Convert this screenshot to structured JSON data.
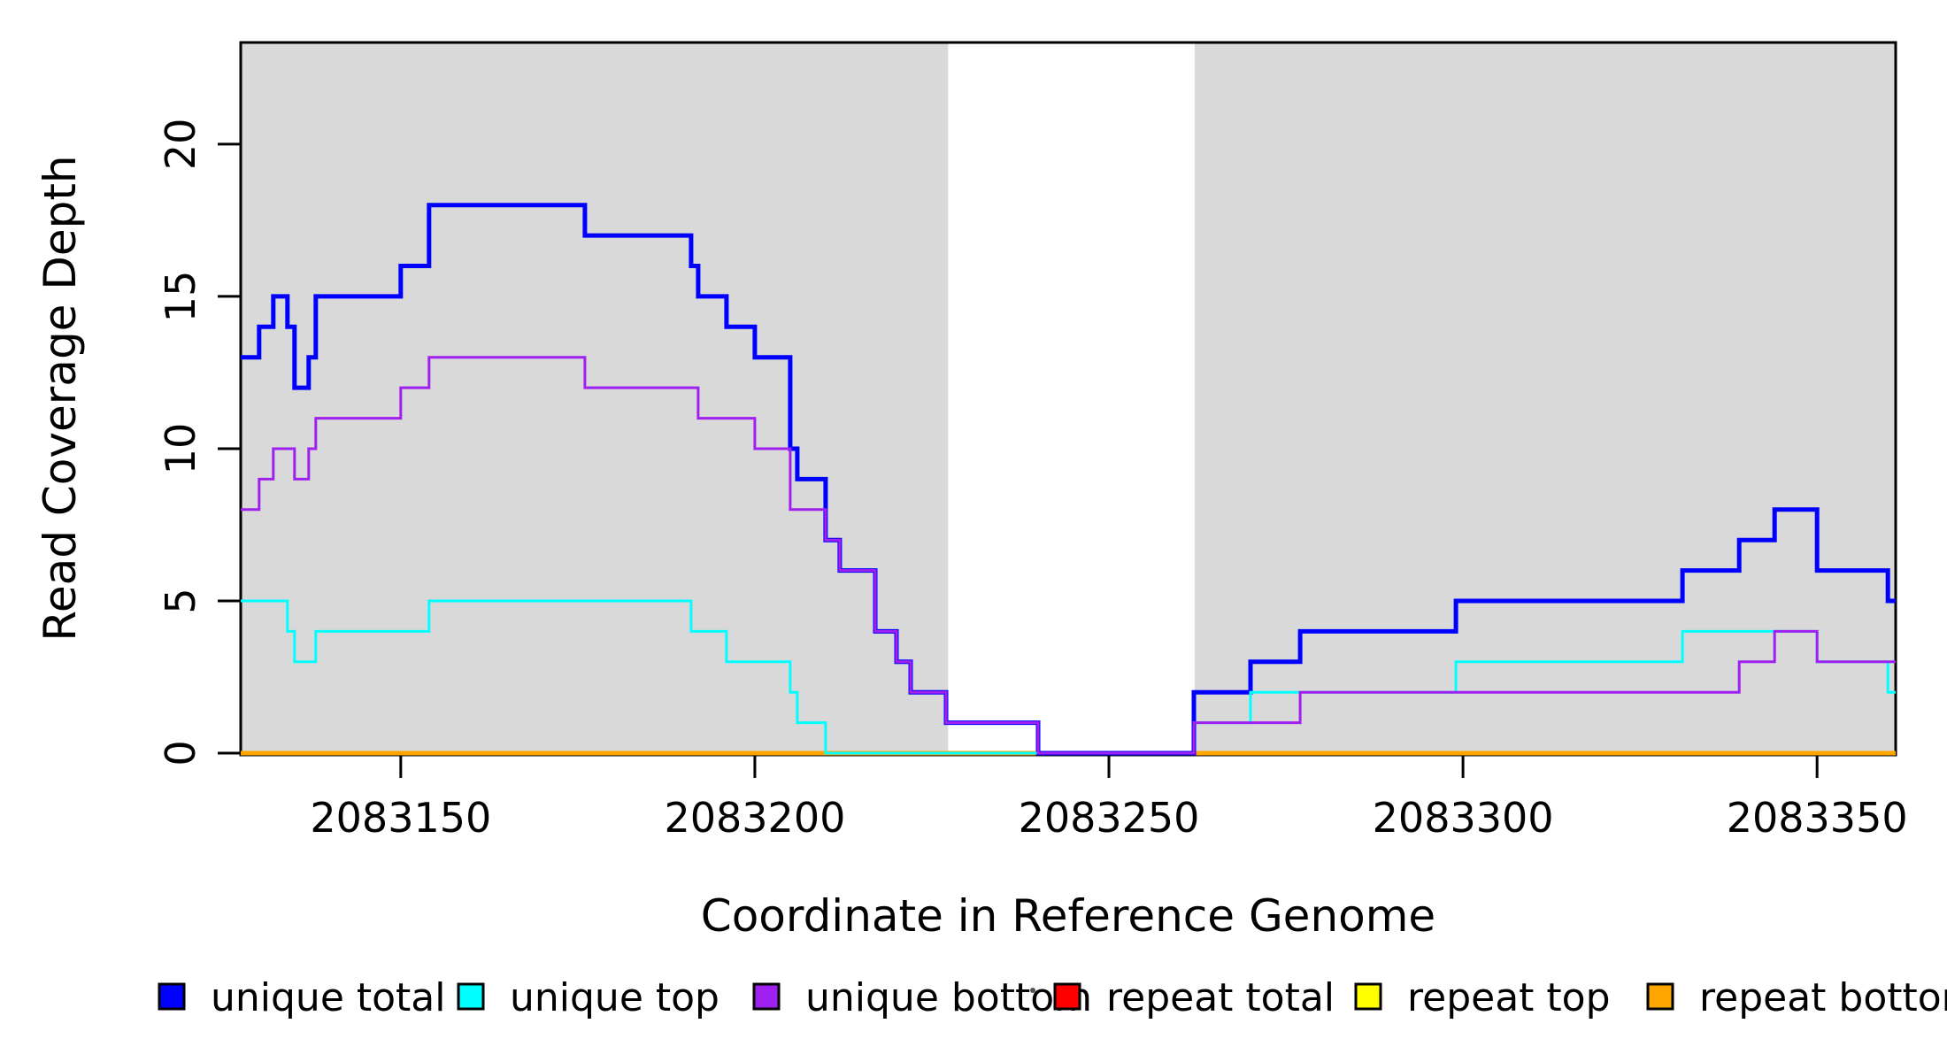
{
  "chart_data": {
    "type": "line",
    "subtype": "step-after-coverage",
    "title": "",
    "xlabel": "Coordinate in Reference Genome",
    "ylabel": "Read Coverage Depth",
    "xlim": [
      2083127.4,
      2083361.1
    ],
    "ylim": [
      0,
      23.34
    ],
    "xticks": [
      2083150,
      2083200,
      2083250,
      2083300,
      2083350
    ],
    "yticks": [
      0,
      5,
      10,
      15,
      20
    ],
    "grid": false,
    "plot_background": "#ffffff",
    "shaded_region_color": "#d9d9d9",
    "shaded_regions": [
      {
        "x0": 2083127.4,
        "x1": 2083227.3
      },
      {
        "x0": 2083262.1,
        "x1": 2083361.1
      }
    ],
    "series": [
      {
        "name": "repeat total",
        "color": "#ff0000",
        "width": 3,
        "points": [
          [
            2083127.4,
            0
          ],
          [
            2083361.1,
            0
          ]
        ]
      },
      {
        "name": "repeat top",
        "color": "#ffff00",
        "width": 3,
        "points": [
          [
            2083127.4,
            0
          ],
          [
            2083361.1,
            0
          ]
        ]
      },
      {
        "name": "repeat bottom",
        "color": "#ffa500",
        "width": 5,
        "points": [
          [
            2083127.4,
            0
          ],
          [
            2083361.1,
            0
          ]
        ]
      },
      {
        "name": "unique total",
        "color": "#0000ff",
        "width": 5,
        "points": [
          [
            2083127.4,
            13
          ],
          [
            2083130,
            14
          ],
          [
            2083132,
            15
          ],
          [
            2083134,
            14
          ],
          [
            2083135,
            12
          ],
          [
            2083137,
            13
          ],
          [
            2083138,
            15
          ],
          [
            2083150,
            16
          ],
          [
            2083154,
            18
          ],
          [
            2083176,
            17
          ],
          [
            2083191,
            16
          ],
          [
            2083192,
            15
          ],
          [
            2083196,
            14
          ],
          [
            2083200,
            13
          ],
          [
            2083205,
            10
          ],
          [
            2083206,
            9
          ],
          [
            2083210,
            7
          ],
          [
            2083212,
            6
          ],
          [
            2083217,
            4
          ],
          [
            2083220,
            3
          ],
          [
            2083222,
            2
          ],
          [
            2083227,
            1
          ],
          [
            2083240,
            0
          ],
          [
            2083262,
            2
          ],
          [
            2083270,
            3
          ],
          [
            2083277,
            4
          ],
          [
            2083299,
            5
          ],
          [
            2083331,
            6
          ],
          [
            2083339,
            7
          ],
          [
            2083344,
            8
          ],
          [
            2083350,
            6
          ],
          [
            2083360,
            5
          ],
          [
            2083361.1,
            5
          ]
        ]
      },
      {
        "name": "unique top",
        "color": "#00ffff",
        "width": 3,
        "points": [
          [
            2083127.4,
            5
          ],
          [
            2083134,
            4
          ],
          [
            2083135,
            3
          ],
          [
            2083138,
            4
          ],
          [
            2083154,
            5
          ],
          [
            2083191,
            4
          ],
          [
            2083196,
            3
          ],
          [
            2083205,
            2
          ],
          [
            2083206,
            1
          ],
          [
            2083210,
            0
          ],
          [
            2083262,
            1
          ],
          [
            2083270,
            2
          ],
          [
            2083299,
            3
          ],
          [
            2083331,
            4
          ],
          [
            2083350,
            3
          ],
          [
            2083360,
            2
          ],
          [
            2083361.1,
            2
          ]
        ]
      },
      {
        "name": "unique bottom",
        "color": "#a020f0",
        "width": 3,
        "points": [
          [
            2083127.4,
            8
          ],
          [
            2083130,
            9
          ],
          [
            2083132,
            10
          ],
          [
            2083135,
            9
          ],
          [
            2083137,
            10
          ],
          [
            2083138,
            11
          ],
          [
            2083150,
            12
          ],
          [
            2083154,
            13
          ],
          [
            2083176,
            12
          ],
          [
            2083192,
            11
          ],
          [
            2083200,
            10
          ],
          [
            2083205,
            8
          ],
          [
            2083210,
            7
          ],
          [
            2083212,
            6
          ],
          [
            2083217,
            4
          ],
          [
            2083220,
            3
          ],
          [
            2083222,
            2
          ],
          [
            2083227,
            1
          ],
          [
            2083240,
            0
          ],
          [
            2083262,
            1
          ],
          [
            2083277,
            2
          ],
          [
            2083339,
            3
          ],
          [
            2083344,
            4
          ],
          [
            2083350,
            3
          ],
          [
            2083361.1,
            3
          ]
        ]
      }
    ],
    "legend_position": "bottom"
  },
  "legend": {
    "items": [
      {
        "label": "unique total",
        "color": "#0000ff"
      },
      {
        "label": "unique top",
        "color": "#00ffff"
      },
      {
        "label": "unique bottom",
        "color": "#a020f0"
      },
      {
        "label": "repeat total",
        "color": "#ff0000"
      },
      {
        "label": "repeat top",
        "color": "#ffff00"
      },
      {
        "label": "repeat bottom",
        "color": "#ffa500"
      }
    ]
  }
}
